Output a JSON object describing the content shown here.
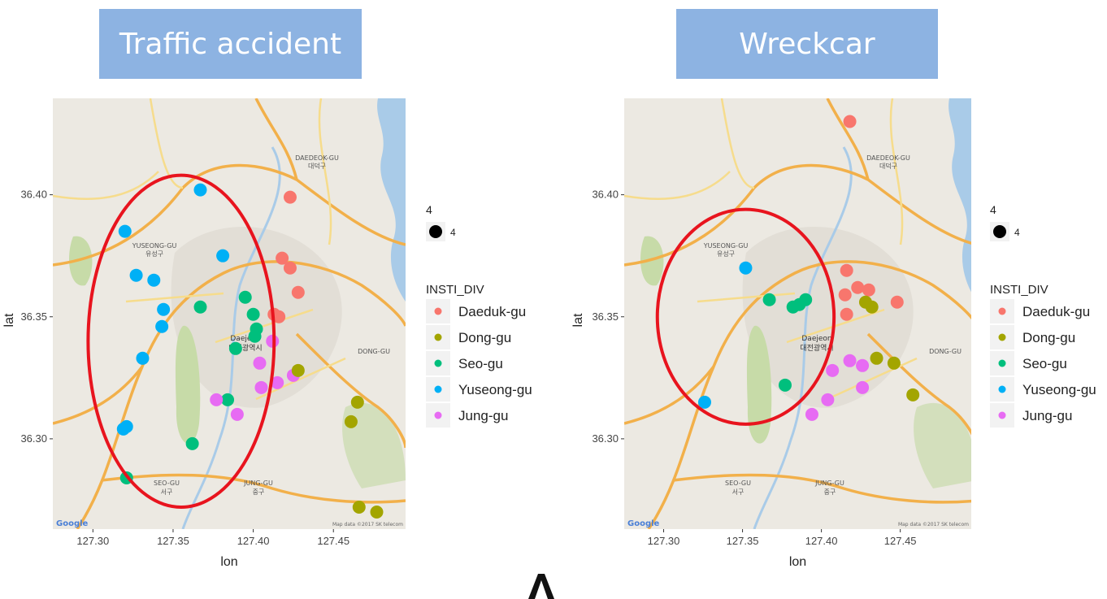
{
  "banners": {
    "left": "Traffic accident",
    "right": "Wreckcar"
  },
  "axis": {
    "xlabel": "lon",
    "ylabel": "lat",
    "xticks": [
      "127.30",
      "127.35",
      "127.40",
      "127.45"
    ],
    "yticks": [
      "36.30",
      "36.35",
      "36.40"
    ]
  },
  "legend": {
    "size_title": "4",
    "size_label": "4",
    "color_title": "INSTI_DIV",
    "items": [
      {
        "label": "Daeduk-gu",
        "color": "#f8766d"
      },
      {
        "label": "Dong-gu",
        "color": "#a3a500"
      },
      {
        "label": "Seo-gu",
        "color": "#00bf7d"
      },
      {
        "label": "Yuseong-gu",
        "color": "#00b0f6"
      },
      {
        "label": "Jung-gu",
        "color": "#e76bf3"
      }
    ]
  },
  "map_labels": {
    "yuseong": "YUSEONG-GU",
    "yuseong_kr": "유성구",
    "daedeok": "DAEDEOK-GU",
    "daedeok_kr": "대덕구",
    "daejeon": "Daejeon",
    "daejeon_kr": "대전광역시",
    "dong": "DONG-GU",
    "seo": "SEO-GU",
    "seo_kr": "서구",
    "jung": "JUNG-GU",
    "jung_kr": "중구",
    "google": "Google",
    "attribution": "Map data ©2017 SK telecom"
  },
  "colors": {
    "highlight_ellipse": "#e8141e",
    "banner": "#8db3e2"
  },
  "chart_data": [
    {
      "type": "scatter",
      "title": "Traffic accident",
      "xlabel": "lon",
      "ylabel": "lat",
      "xlim": [
        127.275,
        127.495
      ],
      "ylim": [
        36.263,
        36.4395
      ],
      "highlight_ellipse": {
        "center": [
          127.355,
          36.34
        ],
        "semi_axes_lon_lat": [
          0.058,
          0.068
        ]
      },
      "points": [
        {
          "lon": 127.367,
          "lat": 36.402,
          "district": "Yuseong-gu"
        },
        {
          "lon": 127.32,
          "lat": 36.385,
          "district": "Yuseong-gu"
        },
        {
          "lon": 127.327,
          "lat": 36.367,
          "district": "Yuseong-gu"
        },
        {
          "lon": 127.338,
          "lat": 36.365,
          "district": "Yuseong-gu"
        },
        {
          "lon": 127.381,
          "lat": 36.375,
          "district": "Yuseong-gu"
        },
        {
          "lon": 127.344,
          "lat": 36.353,
          "district": "Yuseong-gu"
        },
        {
          "lon": 127.343,
          "lat": 36.346,
          "district": "Yuseong-gu"
        },
        {
          "lon": 127.331,
          "lat": 36.333,
          "district": "Yuseong-gu"
        },
        {
          "lon": 127.319,
          "lat": 36.304,
          "district": "Yuseong-gu"
        },
        {
          "lon": 127.321,
          "lat": 36.305,
          "district": "Yuseong-gu"
        },
        {
          "lon": 127.367,
          "lat": 36.354,
          "district": "Seo-gu"
        },
        {
          "lon": 127.395,
          "lat": 36.358,
          "district": "Seo-gu"
        },
        {
          "lon": 127.4,
          "lat": 36.351,
          "district": "Seo-gu"
        },
        {
          "lon": 127.402,
          "lat": 36.345,
          "district": "Seo-gu"
        },
        {
          "lon": 127.401,
          "lat": 36.342,
          "district": "Seo-gu"
        },
        {
          "lon": 127.389,
          "lat": 36.337,
          "district": "Seo-gu"
        },
        {
          "lon": 127.384,
          "lat": 36.316,
          "district": "Seo-gu"
        },
        {
          "lon": 127.362,
          "lat": 36.298,
          "district": "Seo-gu"
        },
        {
          "lon": 127.321,
          "lat": 36.284,
          "district": "Seo-gu"
        },
        {
          "lon": 127.423,
          "lat": 36.399,
          "district": "Daeduk-gu"
        },
        {
          "lon": 127.418,
          "lat": 36.374,
          "district": "Daeduk-gu"
        },
        {
          "lon": 127.423,
          "lat": 36.37,
          "district": "Daeduk-gu"
        },
        {
          "lon": 127.428,
          "lat": 36.36,
          "district": "Daeduk-gu"
        },
        {
          "lon": 127.413,
          "lat": 36.351,
          "district": "Daeduk-gu"
        },
        {
          "lon": 127.416,
          "lat": 36.35,
          "district": "Daeduk-gu"
        },
        {
          "lon": 127.412,
          "lat": 36.34,
          "district": "Jung-gu"
        },
        {
          "lon": 127.404,
          "lat": 36.331,
          "district": "Jung-gu"
        },
        {
          "lon": 127.405,
          "lat": 36.321,
          "district": "Jung-gu"
        },
        {
          "lon": 127.415,
          "lat": 36.323,
          "district": "Jung-gu"
        },
        {
          "lon": 127.425,
          "lat": 36.326,
          "district": "Jung-gu"
        },
        {
          "lon": 127.377,
          "lat": 36.316,
          "district": "Jung-gu"
        },
        {
          "lon": 127.39,
          "lat": 36.31,
          "district": "Jung-gu"
        },
        {
          "lon": 127.428,
          "lat": 36.328,
          "district": "Dong-gu"
        },
        {
          "lon": 127.465,
          "lat": 36.315,
          "district": "Dong-gu"
        },
        {
          "lon": 127.461,
          "lat": 36.307,
          "district": "Dong-gu"
        },
        {
          "lon": 127.466,
          "lat": 36.272,
          "district": "Dong-gu"
        },
        {
          "lon": 127.477,
          "lat": 36.27,
          "district": "Dong-gu"
        }
      ]
    },
    {
      "type": "scatter",
      "title": "Wreckcar",
      "xlabel": "lon",
      "ylabel": "lat",
      "xlim": [
        127.275,
        127.495
      ],
      "ylim": [
        36.263,
        36.4395
      ],
      "highlight_ellipse": {
        "center": [
          127.352,
          36.35
        ],
        "semi_axes_lon_lat": [
          0.056,
          0.044
        ]
      },
      "points": [
        {
          "lon": 127.352,
          "lat": 36.37,
          "district": "Yuseong-gu"
        },
        {
          "lon": 127.326,
          "lat": 36.315,
          "district": "Yuseong-gu"
        },
        {
          "lon": 127.367,
          "lat": 36.357,
          "district": "Seo-gu"
        },
        {
          "lon": 127.382,
          "lat": 36.354,
          "district": "Seo-gu"
        },
        {
          "lon": 127.386,
          "lat": 36.355,
          "district": "Seo-gu"
        },
        {
          "lon": 127.39,
          "lat": 36.357,
          "district": "Seo-gu"
        },
        {
          "lon": 127.377,
          "lat": 36.322,
          "district": "Seo-gu"
        },
        {
          "lon": 127.418,
          "lat": 36.43,
          "district": "Daeduk-gu"
        },
        {
          "lon": 127.416,
          "lat": 36.369,
          "district": "Daeduk-gu"
        },
        {
          "lon": 127.423,
          "lat": 36.362,
          "district": "Daeduk-gu"
        },
        {
          "lon": 127.43,
          "lat": 36.361,
          "district": "Daeduk-gu"
        },
        {
          "lon": 127.415,
          "lat": 36.359,
          "district": "Daeduk-gu"
        },
        {
          "lon": 127.416,
          "lat": 36.351,
          "district": "Daeduk-gu"
        },
        {
          "lon": 127.448,
          "lat": 36.356,
          "district": "Daeduk-gu"
        },
        {
          "lon": 127.428,
          "lat": 36.356,
          "district": "Dong-gu"
        },
        {
          "lon": 127.432,
          "lat": 36.354,
          "district": "Dong-gu"
        },
        {
          "lon": 127.435,
          "lat": 36.333,
          "district": "Dong-gu"
        },
        {
          "lon": 127.446,
          "lat": 36.331,
          "district": "Dong-gu"
        },
        {
          "lon": 127.458,
          "lat": 36.318,
          "district": "Dong-gu"
        },
        {
          "lon": 127.418,
          "lat": 36.332,
          "district": "Jung-gu"
        },
        {
          "lon": 127.426,
          "lat": 36.33,
          "district": "Jung-gu"
        },
        {
          "lon": 127.407,
          "lat": 36.328,
          "district": "Jung-gu"
        },
        {
          "lon": 127.426,
          "lat": 36.321,
          "district": "Jung-gu"
        },
        {
          "lon": 127.404,
          "lat": 36.316,
          "district": "Jung-gu"
        },
        {
          "lon": 127.394,
          "lat": 36.31,
          "district": "Jung-gu"
        }
      ]
    }
  ]
}
